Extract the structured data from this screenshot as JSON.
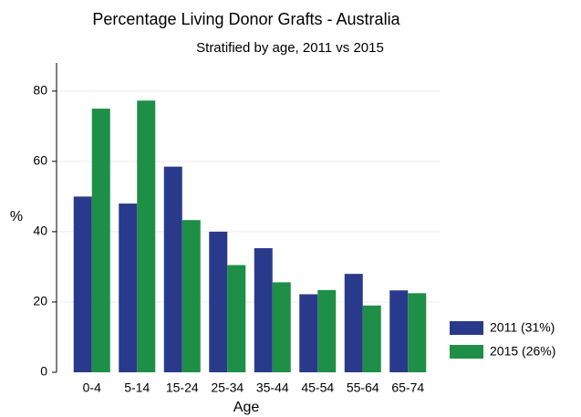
{
  "chart_data": {
    "type": "bar",
    "title": "Percentage Living Donor Grafts - Australia",
    "subtitle": "Stratified by age, 2011 vs 2015",
    "x_label": "Age",
    "y_label": "%",
    "categories": [
      "0-4",
      "5-14",
      "15-24",
      "25-34",
      "35-44",
      "45-54",
      "55-64",
      "65-74"
    ],
    "series": [
      {
        "name": "2011 (31%)",
        "color": "#293a8c",
        "values": [
          50,
          48,
          58.5,
          40,
          35.3,
          22.2,
          28,
          23.3
        ]
      },
      {
        "name": "2015 (26%)",
        "color": "#1e8f46",
        "values": [
          75,
          77.3,
          43.3,
          30.5,
          25.6,
          23.4,
          19,
          22.5
        ]
      }
    ],
    "ylim": [
      0,
      88
    ],
    "yticks": [
      0,
      20,
      40,
      60,
      80
    ],
    "grid": true,
    "legend": "lower right"
  }
}
